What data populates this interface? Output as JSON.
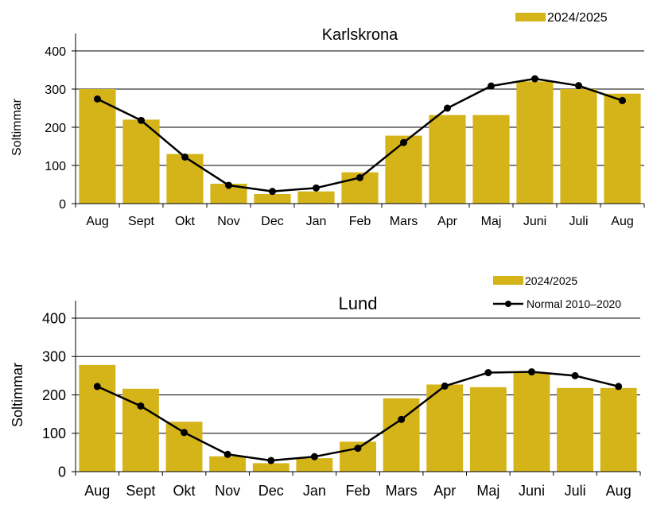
{
  "colors": {
    "bar": "#d4b419",
    "line": "#000000",
    "grid": "#000000"
  },
  "chart_data": [
    {
      "type": "bar",
      "title": "Karlskrona",
      "ylabel": "Soltimmar",
      "ylim": [
        0,
        400
      ],
      "yticks": [
        "0",
        "100",
        "200",
        "300",
        "400"
      ],
      "categories": [
        "Aug",
        "Sept",
        "Okt",
        "Nov",
        "Dec",
        "Jan",
        "Feb",
        "Mars",
        "Apr",
        "Maj",
        "Juni",
        "Juli",
        "Aug"
      ],
      "grid": true,
      "legend_position": "top-right",
      "series": [
        {
          "name": "2024/2025",
          "kind": "bar",
          "values": [
            300,
            220,
            130,
            52,
            25,
            32,
            82,
            178,
            232,
            232,
            320,
            300,
            288
          ]
        },
        {
          "name": "",
          "kind": "line",
          "values": [
            274,
            218,
            122,
            48,
            32,
            41,
            68,
            160,
            250,
            308,
            327,
            309,
            270
          ]
        }
      ]
    },
    {
      "type": "bar",
      "title": "Lund",
      "ylabel": "Soltimmar",
      "ylim": [
        0,
        400
      ],
      "yticks": [
        "0",
        "100",
        "200",
        "300",
        "400"
      ],
      "categories": [
        "Aug",
        "Sept",
        "Okt",
        "Nov",
        "Dec",
        "Jan",
        "Feb",
        "Mars",
        "Apr",
        "Maj",
        "Juni",
        "Juli",
        "Aug"
      ],
      "grid": true,
      "legend_position": "top-right",
      "series": [
        {
          "name": "2024/2025",
          "kind": "bar",
          "values": [
            278,
            216,
            130,
            40,
            22,
            35,
            78,
            191,
            227,
            220,
            258,
            218,
            218
          ]
        },
        {
          "name": "Normal 2010–2020",
          "kind": "line",
          "values": [
            222,
            171,
            102,
            45,
            29,
            39,
            61,
            136,
            223,
            258,
            260,
            250,
            222
          ]
        }
      ]
    }
  ]
}
